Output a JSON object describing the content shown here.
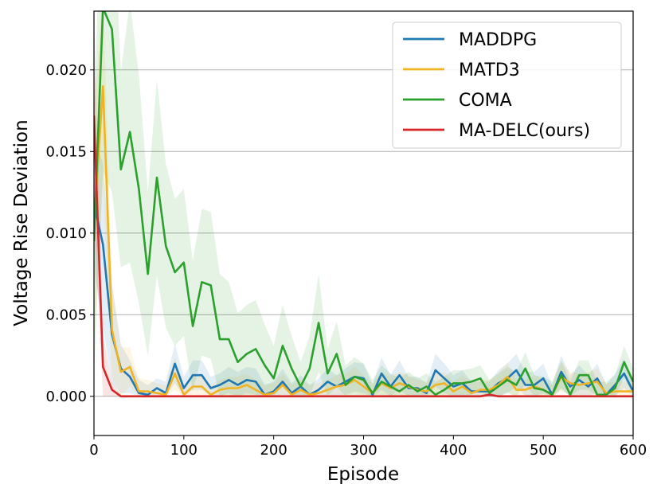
{
  "chart_data": {
    "type": "line",
    "xlabel": "Episode",
    "ylabel": "Voltage Rise Deviation",
    "xlim": [
      0,
      600
    ],
    "ylim": [
      -0.0024,
      0.0236
    ],
    "xticks": [
      "0",
      "100",
      "200",
      "300",
      "400",
      "500",
      "600"
    ],
    "yticks": [
      "0.000",
      "0.005",
      "0.010",
      "0.015",
      "0.020"
    ],
    "grid": "horizontal",
    "legend_position": "top-right",
    "x": [
      0,
      10,
      20,
      30,
      40,
      50,
      60,
      70,
      80,
      90,
      100,
      110,
      120,
      130,
      140,
      150,
      160,
      170,
      180,
      190,
      200,
      210,
      220,
      230,
      240,
      250,
      260,
      270,
      280,
      290,
      300,
      310,
      320,
      330,
      340,
      350,
      360,
      370,
      380,
      390,
      400,
      410,
      420,
      430,
      440,
      450,
      460,
      470,
      480,
      490,
      500,
      510,
      520,
      530,
      540,
      550,
      560,
      570,
      580,
      590,
      600
    ],
    "series": [
      {
        "name": "MADDPG",
        "color": "#1f77b4",
        "values": [
          0.0118,
          0.0093,
          0.0038,
          0.0017,
          0.0012,
          0.0002,
          0.0001,
          0.0005,
          0.0002,
          0.002,
          0.0005,
          0.0013,
          0.0013,
          0.0005,
          0.0007,
          0.001,
          0.0007,
          0.001,
          0.0009,
          0.0001,
          0.0003,
          0.0009,
          0.0002,
          0.0006,
          0.0001,
          0.0004,
          0.0009,
          0.0006,
          0.0009,
          0.0012,
          0.0011,
          0.0001,
          0.0014,
          0.0006,
          0.0013,
          0.0005,
          0.0005,
          0.0002,
          0.0016,
          0.0011,
          0.0006,
          0.0008,
          0.0003,
          0.0003,
          0.0003,
          0.0008,
          0.0011,
          0.0016,
          0.0007,
          0.0007,
          0.0011,
          0.0001,
          0.0015,
          0.0006,
          0.001,
          0.0006,
          0.0011,
          0.0001,
          0.0007,
          0.0014,
          0.0003
        ],
        "band": [
          0.004,
          0.005,
          0.003,
          0.0015,
          0.001,
          0.0008,
          0.0006,
          0.0006,
          0.0007,
          0.0012,
          0.0007,
          0.0009,
          0.0009,
          0.0007,
          0.0007,
          0.0008,
          0.0008,
          0.0008,
          0.0008,
          0.0006,
          0.0006,
          0.0008,
          0.0006,
          0.0007,
          0.0006,
          0.0007,
          0.0008,
          0.0007,
          0.0008,
          0.0009,
          0.0009,
          0.0006,
          0.001,
          0.0007,
          0.0009,
          0.0007,
          0.0007,
          0.0006,
          0.001,
          0.0009,
          0.0007,
          0.0008,
          0.0006,
          0.0006,
          0.0006,
          0.0008,
          0.0009,
          0.001,
          0.0008,
          0.0008,
          0.0009,
          0.0006,
          0.001,
          0.0007,
          0.0009,
          0.0007,
          0.0009,
          0.0006,
          0.0007,
          0.0009,
          0.0006
        ]
      },
      {
        "name": "MATD3",
        "color": "#f0b323",
        "values": [
          0.0105,
          0.019,
          0.0041,
          0.0015,
          0.0018,
          0.0003,
          0.0003,
          0.0002,
          0.0001,
          0.0014,
          0.0001,
          0.0006,
          0.0006,
          0.0001,
          0.0004,
          0.0005,
          0.0005,
          0.0007,
          0.0004,
          0.0001,
          0.0002,
          0.0007,
          0.0001,
          0.0004,
          0.0001,
          0.0002,
          0.0004,
          0.0006,
          0.0007,
          0.001,
          0.0006,
          0.0002,
          0.0008,
          0.0005,
          0.0008,
          0.0006,
          0.0004,
          0.0003,
          0.0007,
          0.0008,
          0.0003,
          0.0006,
          0.0002,
          0.0004,
          0.0004,
          0.0007,
          0.0012,
          0.0004,
          0.0004,
          0.0006,
          0.0004,
          0.0001,
          0.0012,
          0.0008,
          0.0007,
          0.0008,
          0.0009,
          0.0002,
          0.0003,
          0.0003,
          0.0003
        ],
        "band": [
          0.007,
          0.006,
          0.003,
          0.0015,
          0.0012,
          0.0008,
          0.0007,
          0.0006,
          0.0006,
          0.001,
          0.0006,
          0.0007,
          0.0007,
          0.0006,
          0.0006,
          0.0007,
          0.0007,
          0.0007,
          0.0006,
          0.0006,
          0.0006,
          0.0007,
          0.0006,
          0.0006,
          0.0006,
          0.0006,
          0.0006,
          0.0007,
          0.0007,
          0.0008,
          0.0007,
          0.0006,
          0.0007,
          0.0007,
          0.0007,
          0.0007,
          0.0006,
          0.0006,
          0.0007,
          0.0007,
          0.0006,
          0.0007,
          0.0006,
          0.0006,
          0.0006,
          0.0007,
          0.0009,
          0.0006,
          0.0006,
          0.0007,
          0.0006,
          0.0006,
          0.0009,
          0.0007,
          0.0007,
          0.0007,
          0.0008,
          0.0006,
          0.0006,
          0.0006,
          0.0006
        ]
      },
      {
        "name": "COMA",
        "color": "#2ca02c",
        "values": [
          0.0095,
          0.0238,
          0.0225,
          0.0139,
          0.0162,
          0.0127,
          0.0075,
          0.0134,
          0.0092,
          0.0076,
          0.0082,
          0.0043,
          0.007,
          0.0068,
          0.0035,
          0.0035,
          0.0021,
          0.0026,
          0.0029,
          0.0019,
          0.0011,
          0.0031,
          0.0017,
          0.0006,
          0.0017,
          0.0045,
          0.0014,
          0.0026,
          0.0007,
          0.0012,
          0.001,
          0.0002,
          0.0009,
          0.0006,
          0.0003,
          0.0007,
          0.0003,
          0.0006,
          0.0001,
          0.0004,
          0.0008,
          0.0008,
          0.0009,
          0.0011,
          0.0002,
          0.0006,
          0.001,
          0.0007,
          0.0017,
          0.0005,
          0.0004,
          0.0001,
          0.0013,
          0.0001,
          0.0013,
          0.0013,
          0.0001,
          0.0001,
          0.0005,
          0.0021,
          0.0009
        ],
        "band": [
          0.008,
          0.01,
          0.01,
          0.006,
          0.008,
          0.007,
          0.005,
          0.006,
          0.005,
          0.0045,
          0.0045,
          0.004,
          0.0045,
          0.0045,
          0.004,
          0.0035,
          0.003,
          0.003,
          0.003,
          0.0025,
          0.002,
          0.0025,
          0.002,
          0.0015,
          0.002,
          0.003,
          0.0015,
          0.002,
          0.0012,
          0.0012,
          0.001,
          0.0008,
          0.001,
          0.0008,
          0.0008,
          0.0008,
          0.0008,
          0.0008,
          0.0008,
          0.0008,
          0.0008,
          0.0008,
          0.0008,
          0.0008,
          0.0008,
          0.0008,
          0.0008,
          0.0008,
          0.001,
          0.0008,
          0.0008,
          0.0008,
          0.0009,
          0.0008,
          0.0009,
          0.0009,
          0.0008,
          0.0008,
          0.0008,
          0.001,
          0.0008
        ]
      },
      {
        "name": "MA-DELC(ours)",
        "color": "#d62728",
        "values": [
          0.0172,
          0.0018,
          0.0004,
          0.0,
          0.0,
          0.0,
          0.0,
          0.0,
          0.0,
          0.0,
          0.0,
          0.0,
          0.0,
          0.0,
          0.0,
          0.0,
          0.0,
          0.0,
          0.0,
          0.0,
          0.0,
          0.0,
          0.0,
          0.0,
          0.0,
          0.0,
          0.0,
          0.0,
          0.0,
          0.0,
          0.0,
          0.0,
          0.0,
          0.0,
          0.0,
          0.0,
          0.0,
          0.0,
          0.0,
          0.0,
          0.0,
          0.0,
          0.0,
          0.0,
          0.0001,
          0.0,
          0.0,
          0.0,
          0.0,
          0.0,
          0.0,
          0.0,
          0.0,
          0.0,
          0.0,
          0.0,
          0.0,
          0.0,
          0.0,
          0.0,
          0.0
        ],
        "band": [
          0.006,
          0.002,
          0.0005,
          0.0001,
          0.0001,
          0.0001,
          0.0001,
          0.0001,
          0.0001,
          0.0001,
          0.0001,
          0.0001,
          0.0001,
          0.0001,
          0.0001,
          0.0001,
          0.0001,
          0.0001,
          0.0001,
          0.0001,
          0.0001,
          0.0001,
          0.0001,
          0.0001,
          0.0001,
          0.0001,
          0.0001,
          0.0001,
          0.0001,
          0.0001,
          0.0001,
          0.0001,
          0.0001,
          0.0001,
          0.0001,
          0.0001,
          0.0001,
          0.0001,
          0.0001,
          0.0001,
          0.0001,
          0.0001,
          0.0001,
          0.0001,
          0.0001,
          0.0001,
          0.0001,
          0.0001,
          0.0001,
          0.0001,
          0.0001,
          0.0001,
          0.0001,
          0.0001,
          0.0001,
          0.0001,
          0.0001,
          0.0001,
          0.0001,
          0.0001,
          0.0001
        ]
      }
    ]
  }
}
